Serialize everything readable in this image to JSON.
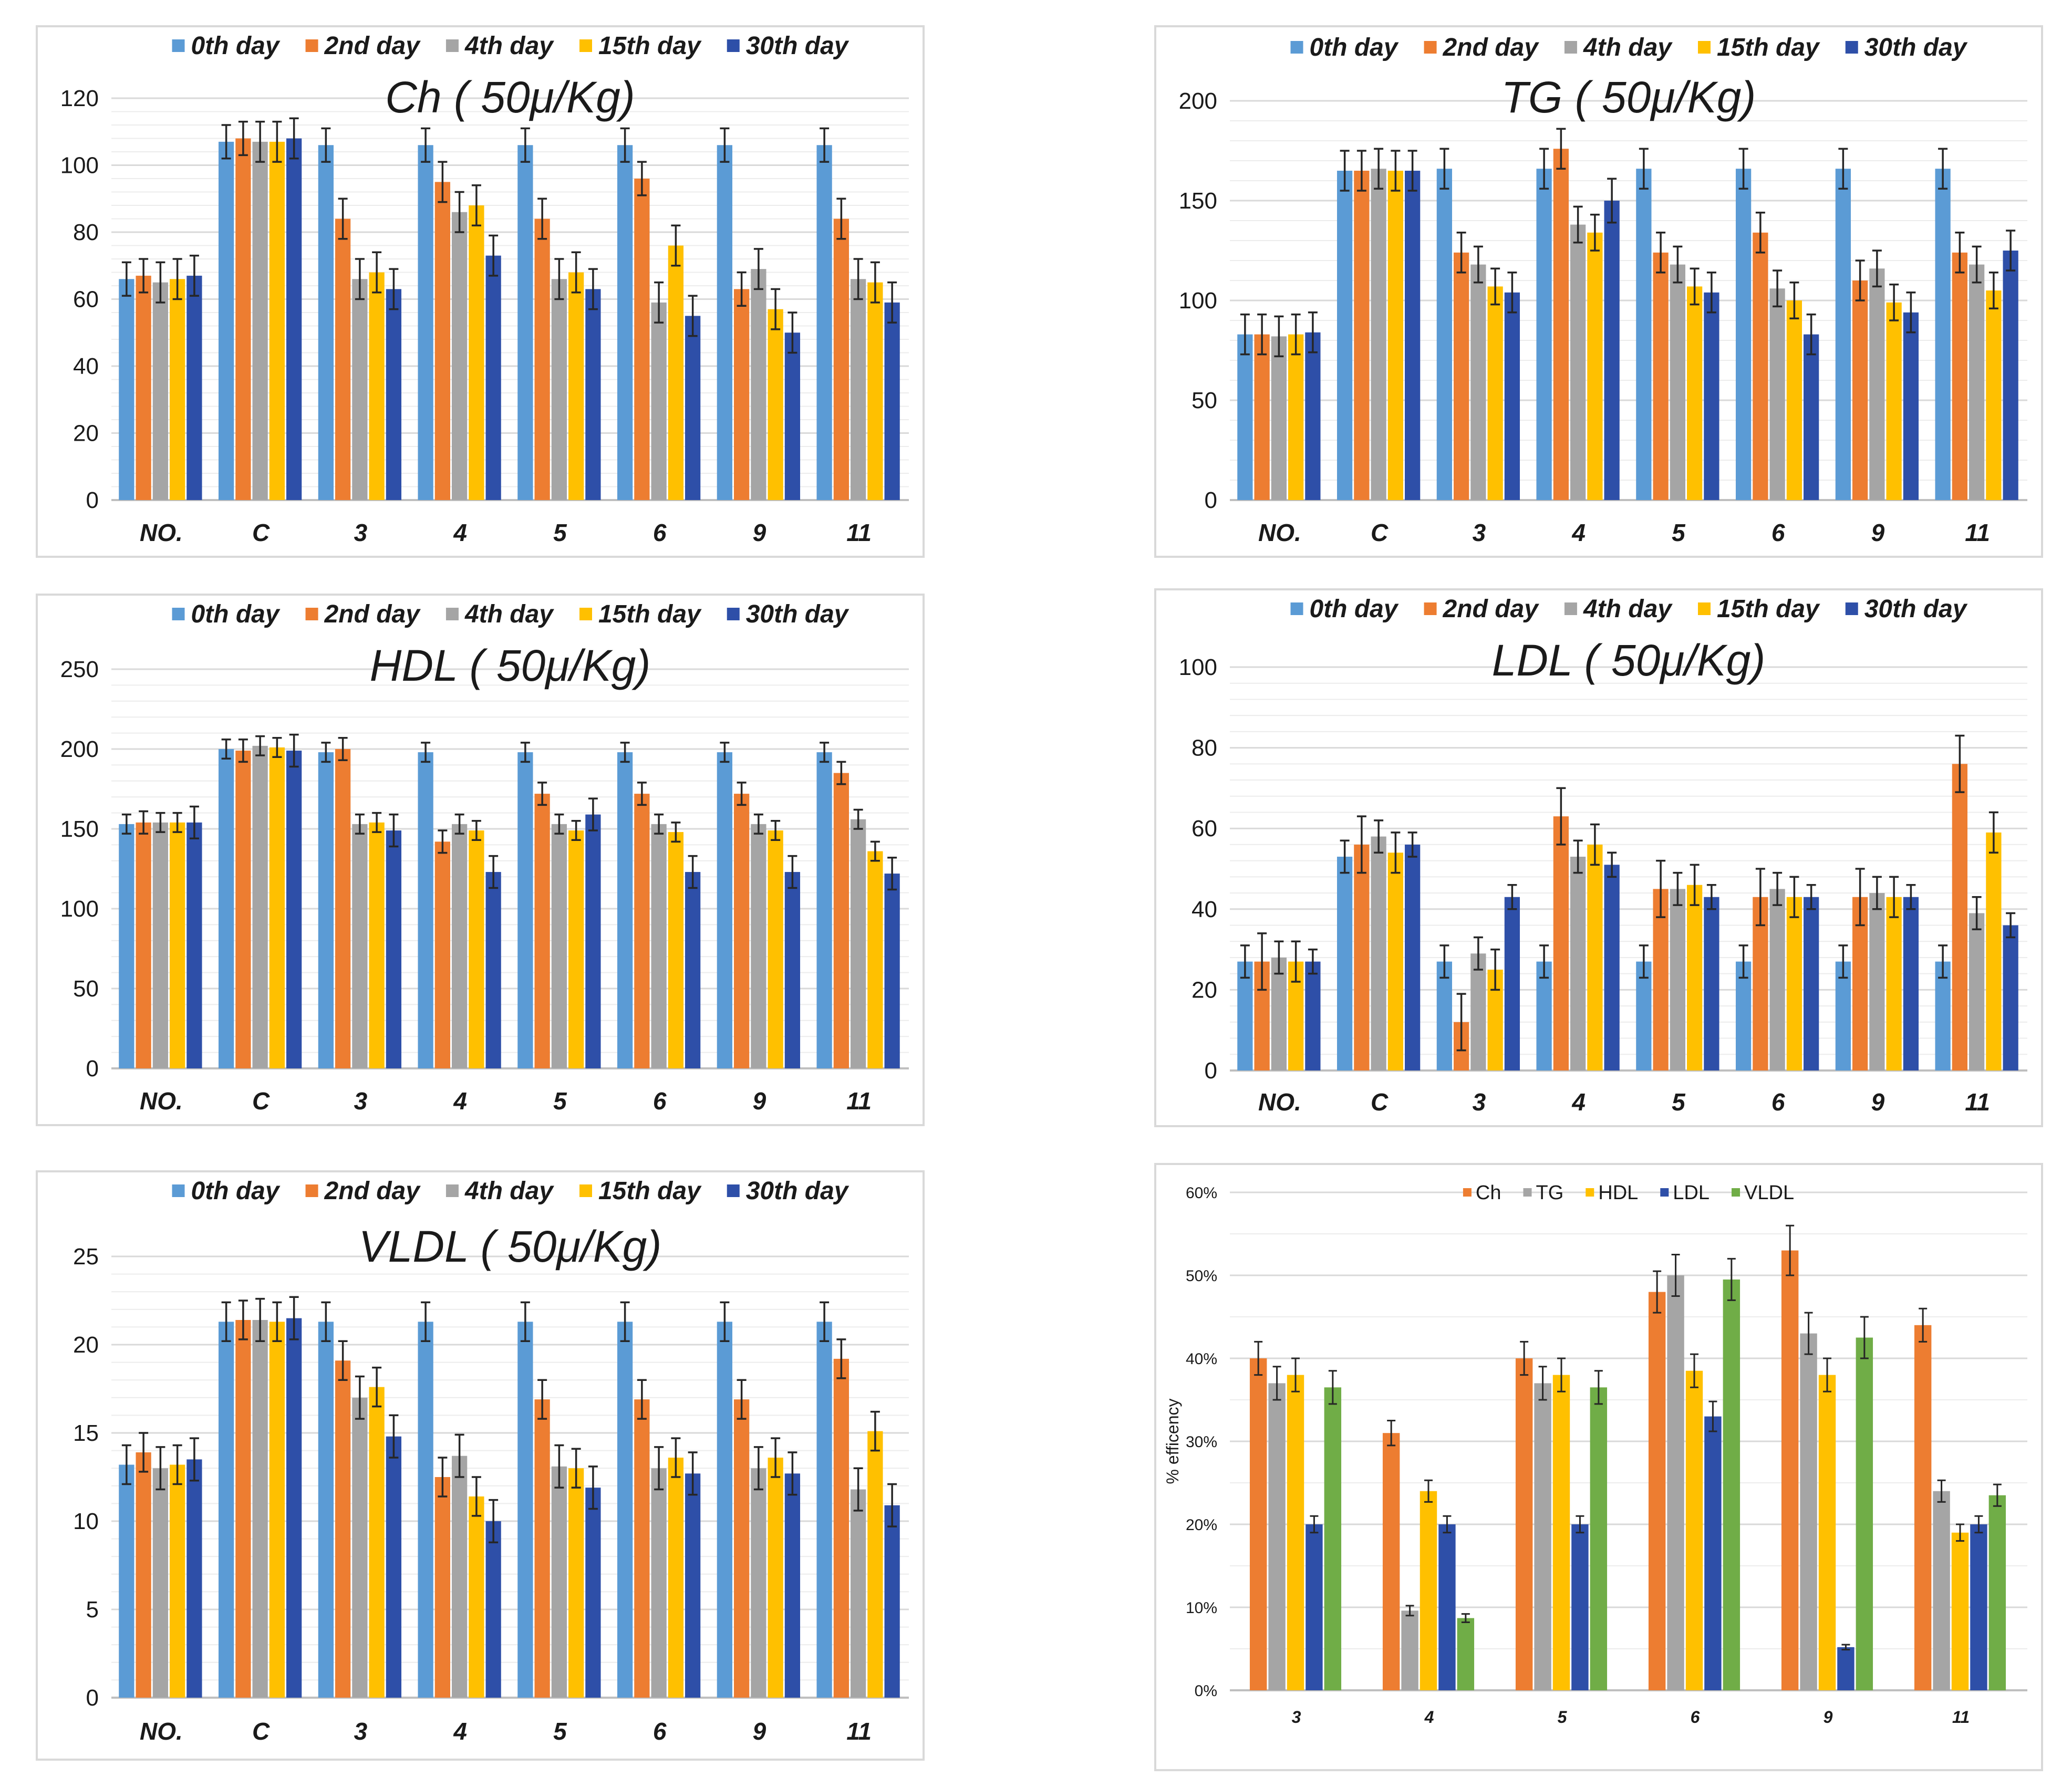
{
  "colors": {
    "0th day": "#5b9bd5",
    "2nd day": "#ed7d31",
    "4th day": "#a5a5a5",
    "15th day": "#ffc000",
    "30th day": "#2e4fa8",
    "Ch": "#ed7d31",
    "TG": "#a5a5a5",
    "HDL": "#ffc000",
    "LDL": "#2e4fa8",
    "VLDL": "#70ad47",
    "grid": "#d9d9d9",
    "errorbar": "#262626"
  },
  "chart_data": [
    {
      "type": "bar",
      "title": "Ch ( 50μ/Kg)",
      "categories": [
        "NO.",
        "C",
        "3",
        "4",
        "5",
        "6",
        "9",
        "11"
      ],
      "ylim": [
        0,
        120
      ],
      "yticks": [
        0,
        20,
        40,
        60,
        80,
        100,
        120
      ],
      "ytick_labels": [
        "0",
        "20",
        "40",
        "60",
        "80",
        "100",
        "120"
      ],
      "grid": true,
      "legend": "top",
      "series": [
        {
          "name": "0th day",
          "values": [
            66,
            107,
            106,
            106,
            106,
            106,
            106,
            106
          ],
          "errors": [
            5,
            5,
            5,
            5,
            5,
            5,
            5,
            5
          ]
        },
        {
          "name": "2nd day",
          "values": [
            67,
            108,
            84,
            95,
            84,
            96,
            63,
            84
          ],
          "errors": [
            5,
            5,
            6,
            6,
            6,
            5,
            5,
            6
          ]
        },
        {
          "name": "4th day",
          "values": [
            65,
            107,
            66,
            86,
            66,
            59,
            69,
            66
          ],
          "errors": [
            6,
            6,
            6,
            6,
            6,
            6,
            6,
            6
          ]
        },
        {
          "name": "15th day",
          "values": [
            66,
            107,
            68,
            88,
            68,
            76,
            57,
            65
          ],
          "errors": [
            6,
            6,
            6,
            6,
            6,
            6,
            6,
            6
          ]
        },
        {
          "name": "30th day",
          "values": [
            67,
            108,
            63,
            73,
            63,
            55,
            50,
            59
          ],
          "errors": [
            6,
            6,
            6,
            6,
            6,
            6,
            6,
            6
          ]
        }
      ]
    },
    {
      "type": "bar",
      "title": "TG ( 50μ/Kg)",
      "categories": [
        "NO.",
        "C",
        "3",
        "4",
        "5",
        "6",
        "9",
        "11"
      ],
      "ylim": [
        0,
        200
      ],
      "yticks": [
        0,
        50,
        100,
        150,
        200
      ],
      "ytick_labels": [
        "0",
        "50",
        "100",
        "150",
        "200"
      ],
      "grid": true,
      "legend": "top",
      "series": [
        {
          "name": "0th day",
          "values": [
            83,
            165,
            166,
            166,
            166,
            166,
            166,
            166
          ],
          "errors": [
            10,
            10,
            10,
            10,
            10,
            10,
            10,
            10
          ]
        },
        {
          "name": "2nd day",
          "values": [
            83,
            165,
            124,
            176,
            124,
            134,
            110,
            124
          ],
          "errors": [
            10,
            10,
            10,
            10,
            10,
            10,
            10,
            10
          ]
        },
        {
          "name": "4th day",
          "values": [
            82,
            166,
            118,
            138,
            118,
            106,
            116,
            118
          ],
          "errors": [
            10,
            10,
            9,
            9,
            9,
            9,
            9,
            9
          ]
        },
        {
          "name": "15th day",
          "values": [
            83,
            165,
            107,
            134,
            107,
            100,
            99,
            105
          ],
          "errors": [
            10,
            10,
            9,
            9,
            9,
            9,
            9,
            9
          ]
        },
        {
          "name": "30th day",
          "values": [
            84,
            165,
            104,
            150,
            104,
            83,
            94,
            125
          ],
          "errors": [
            10,
            10,
            10,
            11,
            10,
            10,
            10,
            10
          ]
        }
      ]
    },
    {
      "type": "bar",
      "title": "HDL ( 50μ/Kg)",
      "categories": [
        "NO.",
        "C",
        "3",
        "4",
        "5",
        "6",
        "9",
        "11"
      ],
      "ylim": [
        0,
        250
      ],
      "yticks": [
        0,
        50,
        100,
        150,
        200,
        250
      ],
      "ytick_labels": [
        "0",
        "50",
        "100",
        "150",
        "200",
        "250"
      ],
      "grid": true,
      "legend": "top",
      "series": [
        {
          "name": "0th day",
          "values": [
            153,
            200,
            198,
            198,
            198,
            198,
            198,
            198
          ],
          "errors": [
            6,
            6,
            6,
            6,
            6,
            6,
            6,
            6
          ]
        },
        {
          "name": "2nd day",
          "values": [
            154,
            199,
            200,
            142,
            172,
            172,
            172,
            185
          ],
          "errors": [
            7,
            7,
            7,
            7,
            7,
            7,
            7,
            7
          ]
        },
        {
          "name": "4th day",
          "values": [
            154,
            202,
            153,
            153,
            153,
            153,
            153,
            156
          ],
          "errors": [
            6,
            6,
            6,
            6,
            6,
            6,
            6,
            6
          ]
        },
        {
          "name": "15th day",
          "values": [
            154,
            201,
            154,
            149,
            149,
            148,
            149,
            136
          ],
          "errors": [
            6,
            6,
            6,
            6,
            6,
            6,
            6,
            6
          ]
        },
        {
          "name": "30th day",
          "values": [
            154,
            199,
            149,
            123,
            159,
            123,
            123,
            122
          ],
          "errors": [
            10,
            10,
            10,
            10,
            10,
            10,
            10,
            10
          ]
        }
      ]
    },
    {
      "type": "bar",
      "title": "LDL ( 50μ/Kg)",
      "categories": [
        "NO.",
        "C",
        "3",
        "4",
        "5",
        "6",
        "9",
        "11"
      ],
      "ylim": [
        0,
        100
      ],
      "yticks": [
        0,
        20,
        40,
        60,
        80,
        100
      ],
      "ytick_labels": [
        "0",
        "20",
        "40",
        "60",
        "80",
        "100"
      ],
      "grid": true,
      "legend": "top",
      "series": [
        {
          "name": "0th day",
          "values": [
            27,
            53,
            27,
            27,
            27,
            27,
            27,
            27
          ],
          "errors": [
            4,
            4,
            4,
            4,
            4,
            4,
            4,
            4
          ]
        },
        {
          "name": "2nd day",
          "values": [
            27,
            56,
            12,
            63,
            45,
            43,
            43,
            76
          ],
          "errors": [
            7,
            7,
            7,
            7,
            7,
            7,
            7,
            7
          ]
        },
        {
          "name": "4th day",
          "values": [
            28,
            58,
            29,
            53,
            45,
            45,
            44,
            39
          ],
          "errors": [
            4,
            4,
            4,
            4,
            4,
            4,
            4,
            4
          ]
        },
        {
          "name": "15th day",
          "values": [
            27,
            54,
            25,
            56,
            46,
            43,
            43,
            59
          ],
          "errors": [
            5,
            5,
            5,
            5,
            5,
            5,
            5,
            5
          ]
        },
        {
          "name": "30th day",
          "values": [
            27,
            56,
            43,
            51,
            43,
            43,
            43,
            36
          ],
          "errors": [
            3,
            3,
            3,
            3,
            3,
            3,
            3,
            3
          ]
        }
      ]
    },
    {
      "type": "bar",
      "title": "VLDL ( 50μ/Kg)",
      "categories": [
        "NO.",
        "C",
        "3",
        "4",
        "5",
        "6",
        "9",
        "11"
      ],
      "ylim": [
        0,
        25
      ],
      "yticks": [
        0,
        5,
        10,
        15,
        20,
        25
      ],
      "ytick_labels": [
        "0",
        "5",
        "10",
        "15",
        "20",
        "25"
      ],
      "grid": true,
      "legend": "top",
      "series": [
        {
          "name": "0th day",
          "values": [
            13.2,
            21.3,
            21.3,
            21.3,
            21.3,
            21.3,
            21.3,
            21.3
          ],
          "errors": [
            1.1,
            1.1,
            1.1,
            1.1,
            1.1,
            1.1,
            1.1,
            1.1
          ]
        },
        {
          "name": "2nd day",
          "values": [
            13.9,
            21.4,
            19.1,
            12.5,
            16.9,
            16.9,
            16.9,
            19.2
          ],
          "errors": [
            1.1,
            1.1,
            1.1,
            1.1,
            1.1,
            1.1,
            1.1,
            1.1
          ]
        },
        {
          "name": "4th day",
          "values": [
            13.0,
            21.4,
            17.0,
            13.7,
            13.1,
            13.0,
            13.0,
            11.8
          ],
          "errors": [
            1.2,
            1.2,
            1.2,
            1.2,
            1.2,
            1.2,
            1.2,
            1.2
          ]
        },
        {
          "name": "15th day",
          "values": [
            13.2,
            21.3,
            17.6,
            11.4,
            13.0,
            13.6,
            13.6,
            15.1
          ],
          "errors": [
            1.1,
            1.1,
            1.1,
            1.1,
            1.1,
            1.1,
            1.1,
            1.1
          ]
        },
        {
          "name": "30th day",
          "values": [
            13.5,
            21.5,
            14.8,
            10.0,
            11.9,
            12.7,
            12.7,
            10.9
          ],
          "errors": [
            1.2,
            1.2,
            1.2,
            1.2,
            1.2,
            1.2,
            1.2,
            1.2
          ]
        }
      ]
    },
    {
      "type": "bar",
      "title": "",
      "ylabel": "% efficency",
      "categories": [
        "3",
        "4",
        "5",
        "6",
        "9",
        "11"
      ],
      "ylim": [
        0,
        60
      ],
      "yticks": [
        0,
        10,
        20,
        30,
        40,
        50,
        60
      ],
      "ytick_labels": [
        "0%",
        "10%",
        "20%",
        "30%",
        "40%",
        "50%",
        "60%"
      ],
      "grid": true,
      "legend": "top",
      "series": [
        {
          "name": "Ch",
          "values": [
            40,
            31,
            40,
            48,
            53,
            44
          ],
          "errors": [
            2,
            1.5,
            2,
            2.5,
            3,
            2
          ]
        },
        {
          "name": "TG",
          "values": [
            37,
            9.6,
            37,
            50,
            43,
            24
          ],
          "errors": [
            2,
            0.6,
            2,
            2.5,
            2.5,
            1.3
          ]
        },
        {
          "name": "HDL",
          "values": [
            38,
            24,
            38,
            38.5,
            38,
            19
          ],
          "errors": [
            2,
            1.3,
            2,
            2,
            2,
            1
          ]
        },
        {
          "name": "LDL",
          "values": [
            20,
            20,
            20,
            33,
            5.2,
            20
          ],
          "errors": [
            1,
            1,
            1,
            1.8,
            0.3,
            1
          ]
        },
        {
          "name": "VLDL",
          "values": [
            36.5,
            8.7,
            36.5,
            49.5,
            42.5,
            23.5
          ],
          "errors": [
            2,
            0.5,
            2,
            2.5,
            2.5,
            1.3
          ]
        }
      ]
    }
  ]
}
